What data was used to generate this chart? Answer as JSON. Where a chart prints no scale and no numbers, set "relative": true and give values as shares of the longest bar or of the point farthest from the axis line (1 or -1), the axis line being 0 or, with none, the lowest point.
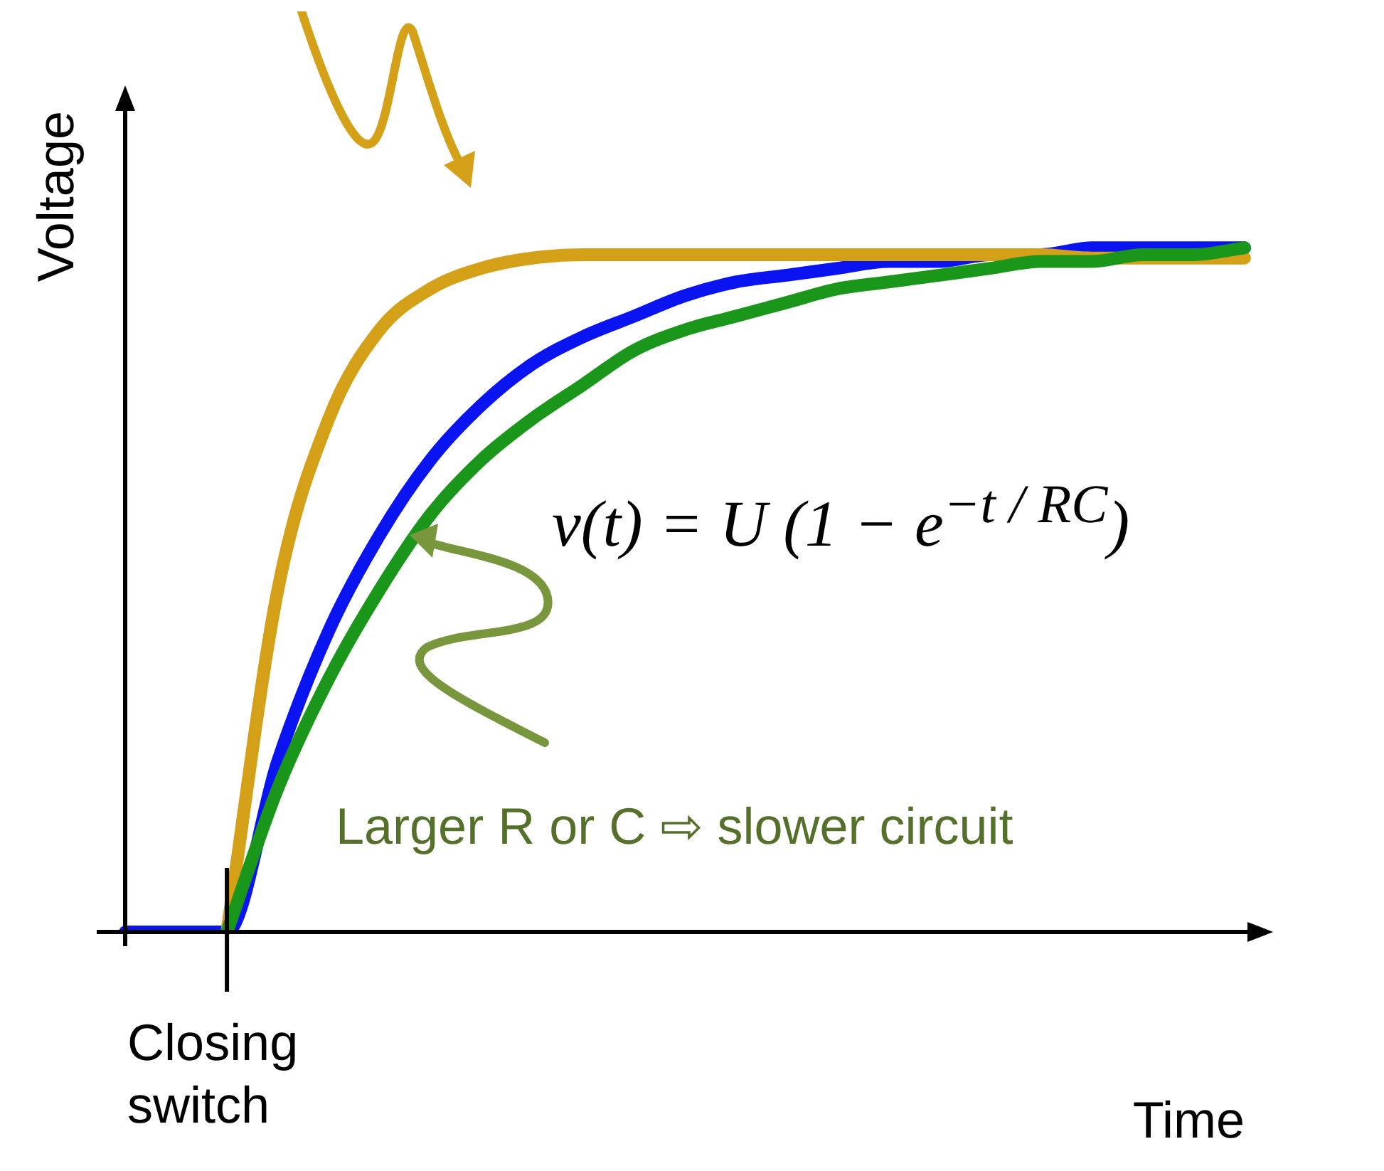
{
  "chart_data": {
    "type": "line",
    "relative": true,
    "xlabel": "Time",
    "ylabel": "Voltage",
    "categories": [
      null,
      null,
      null,
      null,
      null,
      null,
      null,
      null,
      null,
      null,
      null,
      null,
      null,
      null,
      null,
      null,
      null,
      null,
      null,
      null,
      null,
      null,
      null
    ],
    "series": [
      {
        "color": "#0a14f0",
        "values": [
          0,
          0,
          0,
          0.25,
          0.44,
          0.58,
          0.69,
          0.77,
          0.83,
          0.87,
          0.9,
          0.93,
          0.95,
          0.96,
          0.97,
          0.98,
          0.98,
          0.99,
          0.99,
          1,
          1,
          1,
          1
        ]
      },
      {
        "color": "#d4a017",
        "values": [
          null,
          null,
          0,
          0.5,
          0.75,
          0.88,
          0.94,
          0.97,
          0.985,
          0.99,
          0.99,
          0.99,
          0.99,
          0.99,
          0.99,
          0.99,
          0.99,
          0.99,
          0.99,
          0.985,
          0.985,
          0.985,
          0.985
        ]
      },
      {
        "color": "#1a961a",
        "values": [
          null,
          null,
          0,
          0.21,
          0.37,
          0.5,
          0.61,
          0.69,
          0.75,
          0.8,
          0.85,
          0.88,
          0.9,
          0.92,
          0.94,
          0.95,
          0.96,
          0.97,
          0.98,
          0.98,
          0.99,
          0.99,
          1
        ]
      }
    ],
    "annotations": [
      "Closing switch",
      "v(t) = U (1 − e$^{−t / RC}$)",
      "Larger R or C ⇨ slower circuit"
    ],
    "grid": false,
    "legend": false,
    "tick_labels": false,
    "marker": "none"
  }
}
